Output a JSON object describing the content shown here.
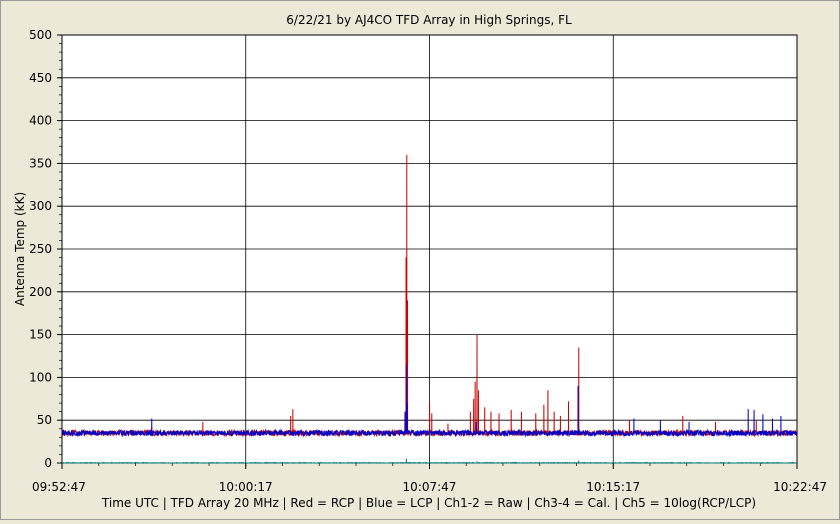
{
  "chart_data": {
    "type": "line",
    "title": "6/22/21  by  AJ4CO TFD Array  in  High Springs, FL",
    "xlabel": "Time UTC | TFD Array 20 MHz | Red = RCP | Blue = LCP | Ch1-2 = Raw | Ch3-4 = Cal. | Ch5 = 10log(RCP/LCP)",
    "ylabel": "Antenna Temp (kK)",
    "xlim_seconds": [
      0,
      1800
    ],
    "ylim": [
      0,
      500
    ],
    "y_ticks": [
      "0",
      "50",
      "100",
      "150",
      "200",
      "250",
      "300",
      "350",
      "400",
      "450",
      "500"
    ],
    "x_ticks": [
      {
        "label": "09:52:47",
        "t": 0
      },
      {
        "label": "10:00:17",
        "t": 450
      },
      {
        "label": "10:07:47",
        "t": 900
      },
      {
        "label": "10:15:17",
        "t": 1350
      },
      {
        "label": "10:22:47",
        "t": 1800
      }
    ],
    "grid": true,
    "series": [
      {
        "name": "RCP",
        "color": "#cc0000",
        "baseline": 35,
        "spikes": [
          {
            "t": 220,
            "v": 42
          },
          {
            "t": 345,
            "v": 48
          },
          {
            "t": 560,
            "v": 55
          },
          {
            "t": 565,
            "v": 63
          },
          {
            "t": 842,
            "v": 240
          },
          {
            "t": 844,
            "v": 360
          },
          {
            "t": 846,
            "v": 190
          },
          {
            "t": 900,
            "v": 70
          },
          {
            "t": 905,
            "v": 58
          },
          {
            "t": 945,
            "v": 46
          },
          {
            "t": 1000,
            "v": 60
          },
          {
            "t": 1008,
            "v": 75
          },
          {
            "t": 1012,
            "v": 95
          },
          {
            "t": 1016,
            "v": 150
          },
          {
            "t": 1020,
            "v": 85
          },
          {
            "t": 1035,
            "v": 65
          },
          {
            "t": 1050,
            "v": 60
          },
          {
            "t": 1070,
            "v": 58
          },
          {
            "t": 1100,
            "v": 62
          },
          {
            "t": 1125,
            "v": 60
          },
          {
            "t": 1160,
            "v": 58
          },
          {
            "t": 1180,
            "v": 68
          },
          {
            "t": 1190,
            "v": 85
          },
          {
            "t": 1205,
            "v": 60
          },
          {
            "t": 1220,
            "v": 55
          },
          {
            "t": 1240,
            "v": 72
          },
          {
            "t": 1265,
            "v": 135
          },
          {
            "t": 1390,
            "v": 50
          },
          {
            "t": 1520,
            "v": 55
          },
          {
            "t": 1600,
            "v": 48
          },
          {
            "t": 1700,
            "v": 50
          }
        ]
      },
      {
        "name": "LCP",
        "color": "#0000cc",
        "baseline": 35,
        "spikes": [
          {
            "t": 220,
            "v": 52
          },
          {
            "t": 840,
            "v": 60
          },
          {
            "t": 843,
            "v": 115
          },
          {
            "t": 845,
            "v": 70
          },
          {
            "t": 1014,
            "v": 48
          },
          {
            "t": 1264,
            "v": 90
          },
          {
            "t": 1400,
            "v": 52
          },
          {
            "t": 1465,
            "v": 50
          },
          {
            "t": 1535,
            "v": 48
          },
          {
            "t": 1680,
            "v": 63
          },
          {
            "t": 1695,
            "v": 62
          },
          {
            "t": 1716,
            "v": 57
          },
          {
            "t": 1740,
            "v": 52
          },
          {
            "t": 1760,
            "v": 55
          }
        ]
      },
      {
        "name": "Ch5",
        "color": "#008080",
        "baseline": 0,
        "spikes": [
          {
            "t": 843,
            "v": 5
          },
          {
            "t": 1016,
            "v": 2
          },
          {
            "t": 1265,
            "v": 3
          }
        ]
      }
    ]
  }
}
